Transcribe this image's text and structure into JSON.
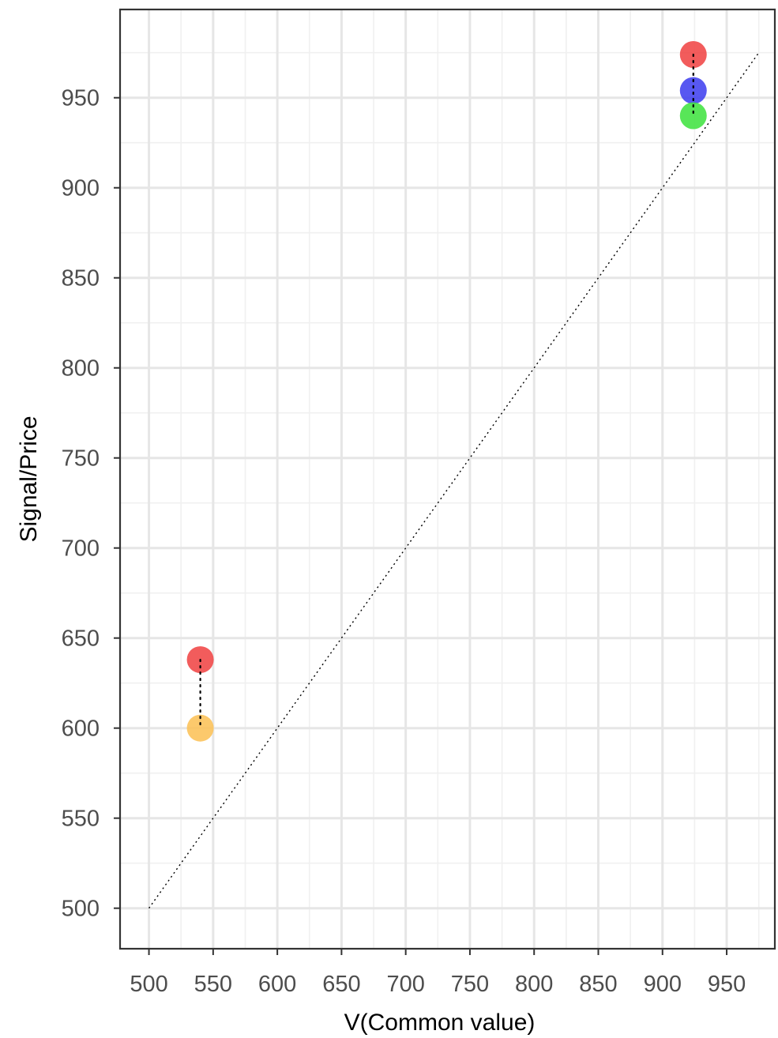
{
  "chart_data": {
    "type": "scatter",
    "title": "",
    "xlabel": "V(Common value)",
    "ylabel": "Signal/Price",
    "xlim": [
      477.5,
      987.5
    ],
    "ylim": [
      477.5,
      999
    ],
    "x_ticks": [
      500,
      550,
      600,
      650,
      700,
      750,
      800,
      850,
      900,
      950
    ],
    "y_ticks": [
      500,
      550,
      600,
      650,
      700,
      750,
      800,
      850,
      900,
      950
    ],
    "grid": true,
    "reference_line": {
      "style": "dotted",
      "x": [
        500,
        975
      ],
      "y": [
        500,
        975
      ],
      "color": "#000000"
    },
    "points": [
      {
        "x": 540,
        "y": 638,
        "color": "#f04040"
      },
      {
        "x": 540,
        "y": 600,
        "color": "#fbbf52"
      },
      {
        "x": 924,
        "y": 974,
        "color": "#f04040"
      },
      {
        "x": 924,
        "y": 954,
        "color": "#3b3bee"
      },
      {
        "x": 924,
        "y": 940,
        "color": "#3be23b"
      }
    ],
    "connectors": [
      {
        "x": 540,
        "y_from": 638,
        "y_to": 600,
        "style": "dotted",
        "color": "#000000"
      },
      {
        "x": 924,
        "y_from": 974,
        "y_to": 940,
        "style": "dotted",
        "color": "#000000"
      }
    ],
    "colors": {
      "panel_border": "#333333",
      "grid_major": "#e6e6e6",
      "grid_minor": "#f0f0f0",
      "tick": "#333333"
    }
  }
}
